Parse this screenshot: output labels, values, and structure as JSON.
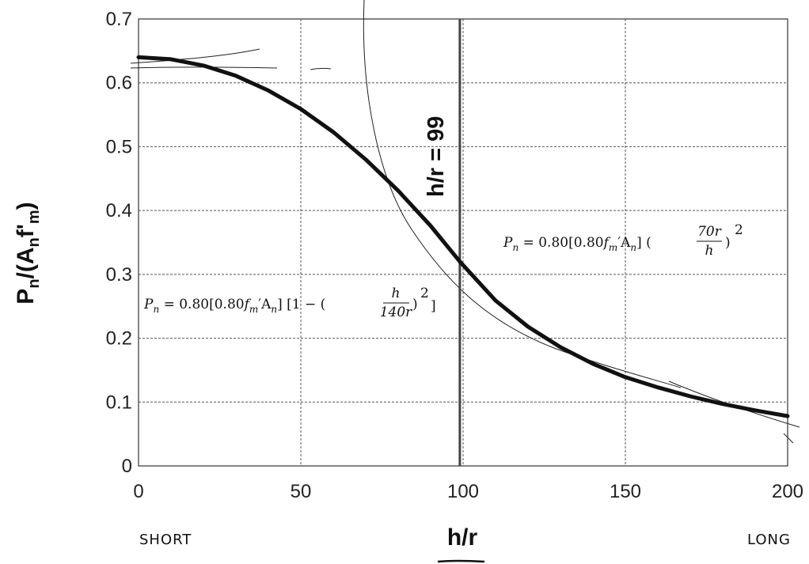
{
  "chart_data": {
    "type": "line",
    "xlabel": "h/r",
    "ylabel": "Pn/(Anf'm)",
    "xlim": [
      0,
      200
    ],
    "ylim": [
      0,
      0.7
    ],
    "x_ticks": [
      "0",
      "50",
      "100",
      "150",
      "200"
    ],
    "y_ticks": [
      "0",
      "0.1",
      "0.2",
      "0.3",
      "0.4",
      "0.5",
      "0.6",
      "0.7"
    ],
    "grid": true,
    "series": [
      {
        "x": [
          0,
          10,
          20,
          30,
          40,
          50,
          60,
          70,
          80,
          90,
          99,
          110,
          120,
          130,
          140,
          150,
          160,
          170,
          180,
          190,
          200
        ],
        "y": [
          0.64,
          0.637,
          0.627,
          0.611,
          0.588,
          0.559,
          0.523,
          0.48,
          0.431,
          0.376,
          0.32,
          0.259,
          0.218,
          0.186,
          0.16,
          0.139,
          0.123,
          0.109,
          0.097,
          0.087,
          0.078
        ]
      }
    ],
    "vertical_line": {
      "x": 99,
      "label": "h/r = 99"
    },
    "annotations": {
      "eq_short": {
        "lhs": "P",
        "lhs_sub": "n",
        "rhs1": " = 0.80[0.80",
        "f": "f",
        "f_sub": "m",
        "rhs2": "′A",
        "a_sub": "n",
        "rhs3": "] [1 − (",
        "num": "h",
        "den": "140r",
        "rhs4": ")",
        "exp": "2",
        "close": "]"
      },
      "eq_long": {
        "lhs": "P",
        "lhs_sub": "n",
        "rhs1": " = 0.80[0.80",
        "f": "f",
        "f_sub": "m",
        "rhs2": "′A",
        "a_sub": "n",
        "rhs3": "] (",
        "num": "70r",
        "den": "h",
        "rhs4": ")",
        "exp": "2"
      }
    },
    "handwritten": {
      "short": "SHORT",
      "long": "LONG"
    }
  }
}
